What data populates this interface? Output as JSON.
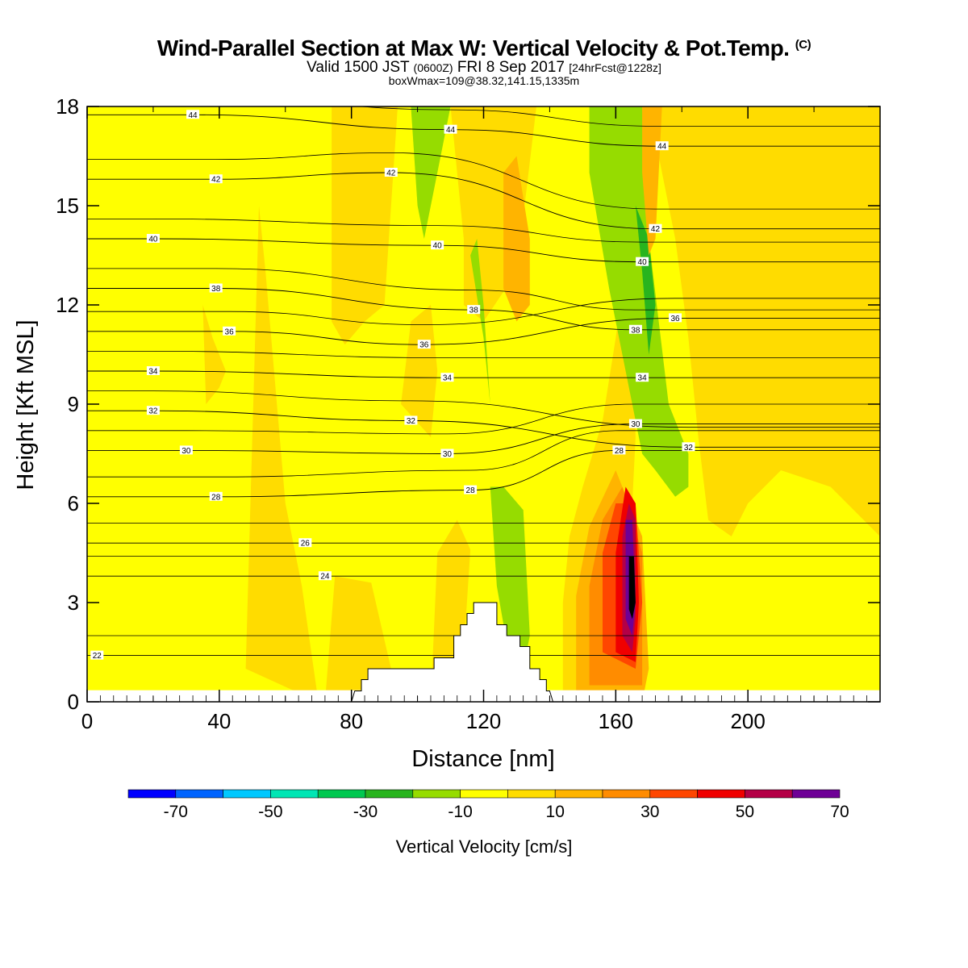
{
  "header": {
    "title": "Wind-Parallel Section at Max W: Vertical Velocity & Pot.Temp.",
    "copyright": "(C)",
    "valid_prefix": "Valid 1500 JST",
    "valid_z": "(0600Z)",
    "valid_date": "FRI 8 Sep 2017",
    "forecast": "[24hrFcst@1228z]",
    "box_info": "boxWmax=109@38.32,141.15,1335m"
  },
  "chart_data": {
    "type": "heatmap",
    "xlabel": "Distance [nm]",
    "ylabel": "Height [Kft MSL]",
    "xlim": [
      0,
      240
    ],
    "ylim": [
      0,
      18
    ],
    "x_ticks": [
      "0",
      "40",
      "80",
      "120",
      "160",
      "200"
    ],
    "y_ticks": [
      "0",
      "3",
      "6",
      "9",
      "12",
      "15",
      "18"
    ],
    "terrain_profile": [
      [
        80,
        0
      ],
      [
        81,
        0.33
      ],
      [
        83,
        0.33
      ],
      [
        83,
        0.67
      ],
      [
        85,
        0.67
      ],
      [
        85,
        1.0
      ],
      [
        105,
        1.0
      ],
      [
        105,
        1.33
      ],
      [
        111,
        1.33
      ],
      [
        111,
        2.0
      ],
      [
        113,
        2.0
      ],
      [
        113,
        2.33
      ],
      [
        115,
        2.33
      ],
      [
        115,
        2.67
      ],
      [
        117,
        2.67
      ],
      [
        117,
        3.0
      ],
      [
        124,
        3.0
      ],
      [
        124,
        2.33
      ],
      [
        127,
        2.33
      ],
      [
        127,
        2.0
      ],
      [
        131,
        2.0
      ],
      [
        131,
        1.67
      ],
      [
        134,
        1.67
      ],
      [
        134,
        1.0
      ],
      [
        137,
        1.0
      ],
      [
        137,
        0.67
      ],
      [
        139,
        0.67
      ],
      [
        139,
        0.33
      ],
      [
        140,
        0.33
      ],
      [
        141,
        0
      ]
    ],
    "colorbar": {
      "title": "Vertical Velocity [cm/s]",
      "tick_labels": [
        "-70",
        "-50",
        "-30",
        "-10",
        "10",
        "30",
        "50",
        "70"
      ],
      "bins": [
        -80,
        -70,
        -60,
        -50,
        -40,
        -30,
        -20,
        -10,
        0,
        10,
        20,
        30,
        40,
        50,
        60,
        70,
        80
      ],
      "colors": [
        "#0000ff",
        "#0064ff",
        "#00c8ff",
        "#00e6b4",
        "#00c850",
        "#28b41e",
        "#96dc00",
        "#ffff00",
        "#ffdc00",
        "#ffb400",
        "#ff8c00",
        "#ff4600",
        "#f00000",
        "#b40046",
        "#6e0096"
      ]
    },
    "vertical_velocity_regions": [
      {
        "value_range": [
          0,
          10
        ],
        "polygon": [
          [
            48,
            1
          ],
          [
            52,
            15
          ],
          [
            54,
            13
          ],
          [
            60,
            6
          ],
          [
            65,
            3.5
          ],
          [
            70,
            0
          ]
        ]
      },
      {
        "value_range": [
          0,
          10
        ],
        "polygon": [
          [
            35,
            12
          ],
          [
            38,
            11
          ],
          [
            42,
            10
          ],
          [
            40,
            9.5
          ],
          [
            36,
            9
          ]
        ]
      },
      {
        "value_range": [
          0,
          10
        ],
        "polygon": [
          [
            72,
            0
          ],
          [
            75,
            3.8
          ],
          [
            86,
            3.6
          ],
          [
            92,
            1
          ],
          [
            96,
            0
          ]
        ]
      },
      {
        "value_range": [
          0,
          10
        ],
        "polygon": [
          [
            74,
            18
          ],
          [
            74,
            11.5
          ],
          [
            78,
            10.8
          ],
          [
            84,
            11.5
          ],
          [
            90,
            12
          ],
          [
            91,
            13.5
          ],
          [
            94,
            18
          ]
        ]
      },
      {
        "value_range": [
          0,
          10
        ],
        "polygon": [
          [
            95,
            9
          ],
          [
            98,
            11.5
          ],
          [
            104,
            12
          ],
          [
            106,
            10
          ],
          [
            104,
            8
          ]
        ]
      },
      {
        "value_range": [
          0,
          10
        ],
        "polygon": [
          [
            104,
            0
          ],
          [
            106,
            4.5
          ],
          [
            112,
            5.5
          ],
          [
            116,
            4.6
          ],
          [
            113,
            0
          ]
        ]
      },
      {
        "value_range": [
          0,
          10
        ],
        "polygon": [
          [
            110,
            18
          ],
          [
            114,
            14
          ],
          [
            114,
            12
          ],
          [
            120,
            11.5
          ],
          [
            130,
            13
          ],
          [
            136,
            18
          ]
        ]
      },
      {
        "value_range": [
          0,
          10
        ],
        "polygon": [
          [
            144,
            0
          ],
          [
            144,
            3
          ],
          [
            146,
            5
          ],
          [
            150,
            6.5
          ],
          [
            156,
            8.5
          ],
          [
            160,
            11
          ],
          [
            162,
            12.5
          ],
          [
            165,
            12
          ],
          [
            166,
            8
          ],
          [
            164,
            4
          ],
          [
            163,
            0
          ]
        ]
      },
      {
        "value_range": [
          0,
          10
        ],
        "polygon": [
          [
            170,
            18
          ],
          [
            178,
            14
          ],
          [
            182,
            11
          ],
          [
            185,
            8
          ],
          [
            188,
            5.5
          ],
          [
            195,
            5
          ],
          [
            200,
            6
          ],
          [
            210,
            7
          ],
          [
            225,
            6.5
          ],
          [
            240,
            5
          ],
          [
            240,
            18
          ]
        ]
      },
      {
        "value_range": [
          0,
          10
        ],
        "polygon": [
          [
            214,
            15
          ],
          [
            218,
            13
          ],
          [
            222,
            11
          ],
          [
            226,
            12
          ],
          [
            232,
            13.5
          ],
          [
            240,
            13
          ],
          [
            240,
            9
          ],
          [
            228,
            10
          ],
          [
            220,
            9
          ],
          [
            214,
            11
          ]
        ]
      },
      {
        "value_range": [
          -20,
          -10
        ],
        "polygon": [
          [
            98,
            18
          ],
          [
            100,
            15
          ],
          [
            102,
            14
          ],
          [
            106,
            16
          ],
          [
            110,
            18
          ]
        ]
      },
      {
        "value_range": [
          -20,
          -10
        ],
        "polygon": [
          [
            116,
            13.5
          ],
          [
            120,
            11
          ],
          [
            122,
            9
          ],
          [
            120,
            12
          ],
          [
            118,
            14
          ]
        ]
      },
      {
        "value_range": [
          -20,
          -10
        ],
        "polygon": [
          [
            122,
            6.5
          ],
          [
            126,
            6.5
          ],
          [
            132,
            5.8
          ],
          [
            134,
            2
          ],
          [
            132,
            1
          ],
          [
            128,
            1.2
          ],
          [
            124,
            3.5
          ]
        ]
      },
      {
        "value_range": [
          -20,
          -10
        ],
        "polygon": [
          [
            152,
            18
          ],
          [
            152,
            16
          ],
          [
            158,
            12.5
          ],
          [
            164,
            9.5
          ],
          [
            168,
            7.5
          ],
          [
            172,
            7
          ],
          [
            178,
            6.2
          ],
          [
            182,
            6.5
          ],
          [
            182,
            7.5
          ],
          [
            176,
            9
          ],
          [
            170,
            14
          ],
          [
            168,
            18
          ]
        ]
      },
      {
        "value_range": [
          -30,
          -20
        ],
        "polygon": [
          [
            166,
            15
          ],
          [
            168,
            13
          ],
          [
            170,
            10.5
          ],
          [
            172,
            12
          ],
          [
            170,
            14
          ]
        ]
      },
      {
        "value_range": [
          10,
          20
        ],
        "polygon": [
          [
            126,
            16
          ],
          [
            130,
            16.5
          ],
          [
            134,
            14
          ],
          [
            134,
            12
          ],
          [
            130,
            11.5
          ],
          [
            126,
            12.5
          ]
        ]
      },
      {
        "value_range": [
          10,
          20
        ],
        "polygon": [
          [
            168,
            18
          ],
          [
            174,
            18
          ],
          [
            172,
            14
          ],
          [
            170,
            13.5
          ],
          [
            168,
            16
          ]
        ]
      },
      {
        "value_range": [
          10,
          20
        ],
        "polygon": [
          [
            148,
            0
          ],
          [
            148,
            3.2
          ],
          [
            152,
            5.3
          ],
          [
            160,
            7
          ],
          [
            168,
            5
          ],
          [
            170,
            1
          ],
          [
            168,
            0
          ]
        ]
      },
      {
        "value_range": [
          20,
          30
        ],
        "polygon": [
          [
            152,
            0.5
          ],
          [
            152,
            3.5
          ],
          [
            156,
            5.5
          ],
          [
            162,
            6.5
          ],
          [
            168,
            4.5
          ],
          [
            168,
            0.5
          ]
        ]
      },
      {
        "value_range": [
          30,
          40
        ],
        "polygon": [
          [
            156,
            1.5
          ],
          [
            156,
            4.5
          ],
          [
            160,
            6
          ],
          [
            166,
            6
          ],
          [
            168,
            3
          ],
          [
            166,
            1
          ]
        ]
      },
      {
        "value_range": [
          40,
          50
        ],
        "polygon": [
          [
            160,
            1.5
          ],
          [
            160,
            4.5
          ],
          [
            163,
            6.5
          ],
          [
            166,
            6
          ],
          [
            167,
            3
          ],
          [
            166,
            1.2
          ]
        ]
      },
      {
        "value_range": [
          50,
          60
        ],
        "polygon": [
          [
            162,
            2
          ],
          [
            162,
            5
          ],
          [
            164,
            6
          ],
          [
            166,
            5.5
          ],
          [
            166,
            2.5
          ],
          [
            165,
            1.5
          ]
        ]
      },
      {
        "value_range": [
          60,
          70
        ],
        "polygon": [
          [
            163,
            2.5
          ],
          [
            163,
            5.5
          ],
          [
            165,
            5.5
          ],
          [
            166,
            3
          ],
          [
            165,
            2
          ]
        ]
      },
      {
        "value_range": [
          70,
          80
        ],
        "polygon": [
          [
            164,
            2.8
          ],
          [
            164,
            4.4
          ],
          [
            165.5,
            4.4
          ],
          [
            166,
            3
          ],
          [
            165,
            2.5
          ]
        ]
      }
    ],
    "theta_contour_labels": [
      {
        "value": "44",
        "x": 32,
        "y": 17.75
      },
      {
        "value": "44",
        "x": 110,
        "y": 17.3
      },
      {
        "value": "44",
        "x": 174,
        "y": 16.8
      },
      {
        "value": "42",
        "x": 39,
        "y": 15.8
      },
      {
        "value": "42",
        "x": 92,
        "y": 16.0
      },
      {
        "value": "42",
        "x": 172,
        "y": 14.3
      },
      {
        "value": "40",
        "x": 20,
        "y": 14.0
      },
      {
        "value": "40",
        "x": 106,
        "y": 13.8
      },
      {
        "value": "40",
        "x": 168,
        "y": 13.3
      },
      {
        "value": "38",
        "x": 39,
        "y": 12.5
      },
      {
        "value": "38",
        "x": 117,
        "y": 11.85
      },
      {
        "value": "38",
        "x": 166,
        "y": 11.25
      },
      {
        "value": "36",
        "x": 43,
        "y": 11.2
      },
      {
        "value": "36",
        "x": 102,
        "y": 10.8
      },
      {
        "value": "36",
        "x": 178,
        "y": 11.6
      },
      {
        "value": "34",
        "x": 20,
        "y": 10.0
      },
      {
        "value": "34",
        "x": 109,
        "y": 9.8
      },
      {
        "value": "34",
        "x": 168,
        "y": 9.8
      },
      {
        "value": "32",
        "x": 20,
        "y": 8.8
      },
      {
        "value": "32",
        "x": 98,
        "y": 8.5
      },
      {
        "value": "32",
        "x": 182,
        "y": 7.7
      },
      {
        "value": "30",
        "x": 30,
        "y": 7.6
      },
      {
        "value": "30",
        "x": 109,
        "y": 7.5
      },
      {
        "value": "30",
        "x": 166,
        "y": 8.4
      },
      {
        "value": "28",
        "x": 39,
        "y": 6.2
      },
      {
        "value": "28",
        "x": 116,
        "y": 6.4
      },
      {
        "value": "28",
        "x": 161,
        "y": 7.6
      },
      {
        "value": "26",
        "x": 66,
        "y": 4.8
      },
      {
        "value": "24",
        "x": 72,
        "y": 3.8
      },
      {
        "value": "22",
        "x": 3,
        "y": 1.4
      }
    ]
  }
}
